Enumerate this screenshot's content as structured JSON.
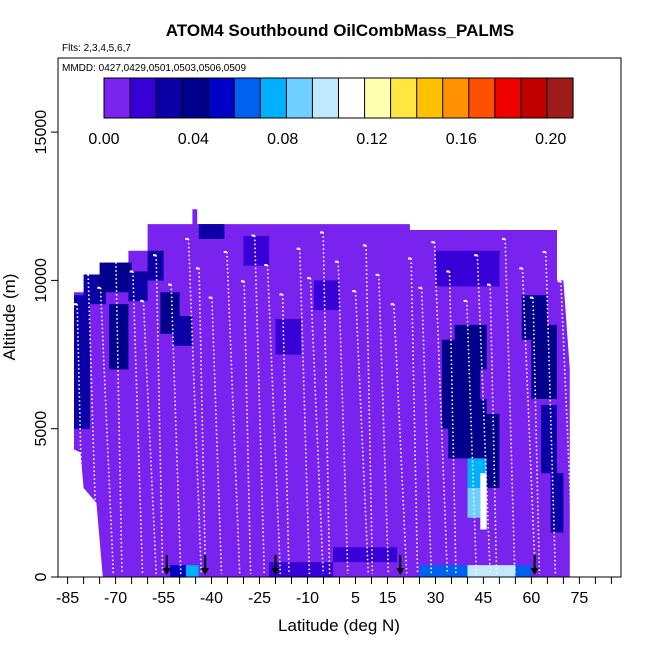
{
  "chart_data": {
    "type": "heatmap",
    "title": "ATOM4 Southbound OilCombMass_PALMS",
    "flights_label": "Flts: 2,3,4,5,6,7",
    "dates_label": "MMDD: 0427,0429,0501,0503,0506,0509",
    "xlabel": "Latitude (deg N)",
    "ylabel": "Altitude (m)",
    "xlim": [
      -88,
      88
    ],
    "ylim": [
      0,
      17500
    ],
    "x_ticks": [
      -85,
      -70,
      -55,
      -40,
      -25,
      -10,
      5,
      15,
      30,
      45,
      60,
      75
    ],
    "x_tick_labels": [
      "-85",
      "-70",
      "-55",
      "-40",
      "-25",
      "-10",
      "5",
      "15",
      "30",
      "45",
      "60",
      "75"
    ],
    "y_ticks": [
      0,
      5000,
      10000,
      15000
    ],
    "y_tick_labels": [
      "0",
      "5000",
      "10000",
      "15000"
    ],
    "colorbar": {
      "range": [
        0,
        0.21
      ],
      "tick_values": [
        0,
        0.04,
        0.08,
        0.12,
        0.16,
        0.2
      ],
      "tick_labels": [
        "0.00",
        "0.04",
        "0.08",
        "0.12",
        "0.16",
        "0.20"
      ],
      "colors": [
        "#7a22ee",
        "#3700d6",
        "#0a00a6",
        "#00008b",
        "#0000c8",
        "#0060f0",
        "#00b0ff",
        "#6fd0ff",
        "#c0e8ff",
        "#ffffff",
        "#ffffb0",
        "#ffe640",
        "#ffc000",
        "#ff9000",
        "#ff5000",
        "#ee0000",
        "#c00000",
        "#9f1b1b"
      ]
    },
    "background_value": 0.005,
    "cells": [
      {
        "lat": [
          -83,
          -78
        ],
        "alt": [
          5000,
          9500
        ],
        "v": 0.03
      },
      {
        "lat": [
          -80,
          -73
        ],
        "alt": [
          9200,
          10200
        ],
        "v": 0.03
      },
      {
        "lat": [
          -75,
          -65
        ],
        "alt": [
          9600,
          10600
        ],
        "v": 0.035
      },
      {
        "lat": [
          -72,
          -66
        ],
        "alt": [
          7000,
          9200
        ],
        "v": 0.035
      },
      {
        "lat": [
          -66,
          -60
        ],
        "alt": [
          9300,
          10300
        ],
        "v": 0.03
      },
      {
        "lat": [
          -60,
          -55
        ],
        "alt": [
          10000,
          11000
        ],
        "v": 0.025
      },
      {
        "lat": [
          -56,
          -50
        ],
        "alt": [
          8200,
          9600
        ],
        "v": 0.035
      },
      {
        "lat": [
          -52,
          -46
        ],
        "alt": [
          7800,
          8800
        ],
        "v": 0.03
      },
      {
        "lat": [
          -44,
          -36
        ],
        "alt": [
          11400,
          11900
        ],
        "v": 0.03
      },
      {
        "lat": [
          -30,
          -22
        ],
        "alt": [
          10500,
          11500
        ],
        "v": 0.02
      },
      {
        "lat": [
          -20,
          -12
        ],
        "alt": [
          7500,
          8700
        ],
        "v": 0.02
      },
      {
        "lat": [
          -8,
          0
        ],
        "alt": [
          9000,
          10000
        ],
        "v": 0.015
      },
      {
        "lat": [
          30,
          50
        ],
        "alt": [
          9800,
          11000
        ],
        "v": 0.018
      },
      {
        "lat": [
          32,
          44
        ],
        "alt": [
          5000,
          8000
        ],
        "v": 0.04
      },
      {
        "lat": [
          36,
          46
        ],
        "alt": [
          7000,
          8500
        ],
        "v": 0.045
      },
      {
        "lat": [
          34,
          46
        ],
        "alt": [
          4000,
          6000
        ],
        "v": 0.045
      },
      {
        "lat": [
          40,
          46
        ],
        "alt": [
          3000,
          4000
        ],
        "v": 0.07
      },
      {
        "lat": [
          40,
          44
        ],
        "alt": [
          2000,
          3000
        ],
        "v": 0.09
      },
      {
        "lat": [
          44,
          46
        ],
        "alt": [
          1600,
          3500
        ],
        "v": 0.11
      },
      {
        "lat": [
          46,
          50
        ],
        "alt": [
          3000,
          5500
        ],
        "v": 0.035
      },
      {
        "lat": [
          57,
          65
        ],
        "alt": [
          8000,
          9500
        ],
        "v": 0.04
      },
      {
        "lat": [
          60,
          68
        ],
        "alt": [
          6000,
          8500
        ],
        "v": 0.035
      },
      {
        "lat": [
          63,
          68
        ],
        "alt": [
          3500,
          5800
        ],
        "v": 0.03
      },
      {
        "lat": [
          66,
          70
        ],
        "alt": [
          1500,
          3500
        ],
        "v": 0.025
      },
      {
        "lat": [
          -53,
          -44
        ],
        "alt": [
          0,
          400
        ],
        "v": 0.05
      },
      {
        "lat": [
          -48,
          -44
        ],
        "alt": [
          0,
          400
        ],
        "v": 0.08
      },
      {
        "lat": [
          -22,
          -2
        ],
        "alt": [
          0,
          500
        ],
        "v": 0.02
      },
      {
        "lat": [
          -2,
          18
        ],
        "alt": [
          500,
          1000
        ],
        "v": 0.015
      },
      {
        "lat": [
          25,
          40
        ],
        "alt": [
          0,
          400
        ],
        "v": 0.06
      },
      {
        "lat": [
          40,
          55
        ],
        "alt": [
          0,
          400
        ],
        "v": 0.1
      },
      {
        "lat": [
          55,
          60
        ],
        "alt": [
          0,
          400
        ],
        "v": 0.06
      }
    ],
    "flight_arrows_lat": [
      -54,
      -42,
      -20,
      19,
      61
    ]
  }
}
